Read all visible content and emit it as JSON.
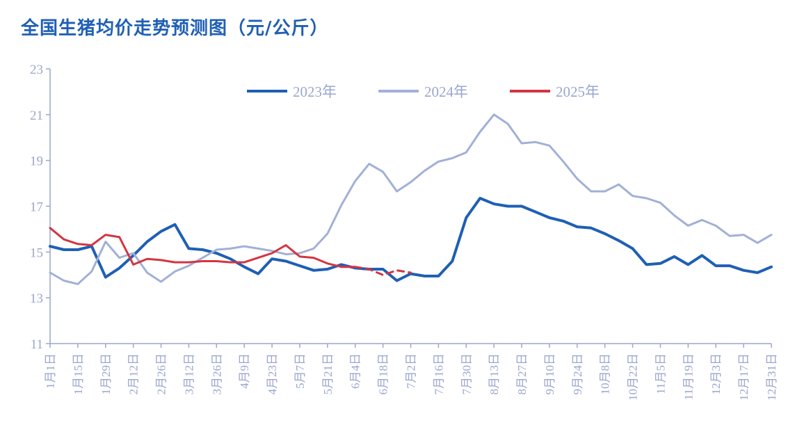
{
  "chart_data": {
    "type": "line",
    "title": "全国生猪均价走势预测图（元/公斤）",
    "xlabel": "",
    "ylabel": "",
    "ylim": [
      11,
      23
    ],
    "yticks": [
      11,
      13,
      15,
      17,
      19,
      21,
      23
    ],
    "x_tick_labels": [
      "1月1日",
      "1月15日",
      "1月29日",
      "2月12日",
      "2月26日",
      "3月12日",
      "3月26日",
      "4月9日",
      "4月23日",
      "5月7日",
      "5月21日",
      "6月4日",
      "6月18日",
      "7月2日",
      "7月16日",
      "7月30日",
      "8月13日",
      "8月27日",
      "9月10日",
      "9月24日",
      "10月8日",
      "10月22日",
      "11月5日",
      "11月19日",
      "12月3日",
      "12月17日",
      "12月31日"
    ],
    "grid": false,
    "legend_position": "top-center",
    "x_unit": "week_index",
    "series": [
      {
        "name": "2023年",
        "color": "#1e5fb4",
        "width": 4,
        "dash": "",
        "values": [
          15.25,
          15.1,
          15.1,
          15.25,
          13.9,
          14.3,
          14.85,
          15.45,
          15.9,
          16.2,
          15.15,
          15.1,
          14.95,
          14.7,
          14.35,
          14.05,
          14.7,
          14.6,
          14.4,
          14.2,
          14.25,
          14.45,
          14.3,
          14.25,
          14.25,
          13.75,
          14.05,
          13.95,
          13.95,
          14.6,
          16.5,
          17.35,
          17.1,
          17.0,
          17.0,
          16.75,
          16.5,
          16.35,
          16.1,
          16.05,
          15.8,
          15.5,
          15.15,
          14.45,
          14.5,
          14.8,
          14.45,
          14.85,
          14.4,
          14.4,
          14.2,
          14.1,
          14.35
        ]
      },
      {
        "name": "2024年",
        "color": "#a2b0d6",
        "width": 3,
        "dash": "",
        "values": [
          14.1,
          13.75,
          13.6,
          14.15,
          15.45,
          14.75,
          14.95,
          14.1,
          13.7,
          14.15,
          14.4,
          14.75,
          15.1,
          15.15,
          15.25,
          15.15,
          15.05,
          14.9,
          14.95,
          15.15,
          15.8,
          17.05,
          18.1,
          18.85,
          18.5,
          17.65,
          18.05,
          18.55,
          18.95,
          19.1,
          19.35,
          20.25,
          21.0,
          20.6,
          19.75,
          19.8,
          19.65,
          18.95,
          18.2,
          17.65,
          17.65,
          17.95,
          17.45,
          17.35,
          17.15,
          16.6,
          16.15,
          16.4,
          16.15,
          15.7,
          15.75,
          15.4,
          15.75
        ]
      },
      {
        "name": "2025年",
        "color": "#d23541",
        "width": 3,
        "dash": "",
        "values": [
          16.05,
          15.55,
          15.35,
          15.3,
          15.75,
          15.65,
          14.45,
          14.7,
          14.65,
          14.55,
          14.55,
          14.6,
          14.6,
          14.55,
          14.55,
          14.75,
          14.95,
          15.3,
          14.8,
          14.75,
          14.5,
          14.35,
          14.35
        ]
      },
      {
        "name": "",
        "color": "#d23541",
        "width": 3,
        "dash": "9,7",
        "start_index": 22,
        "values": [
          14.35,
          14.25,
          14.0,
          14.2,
          14.1
        ]
      }
    ]
  }
}
